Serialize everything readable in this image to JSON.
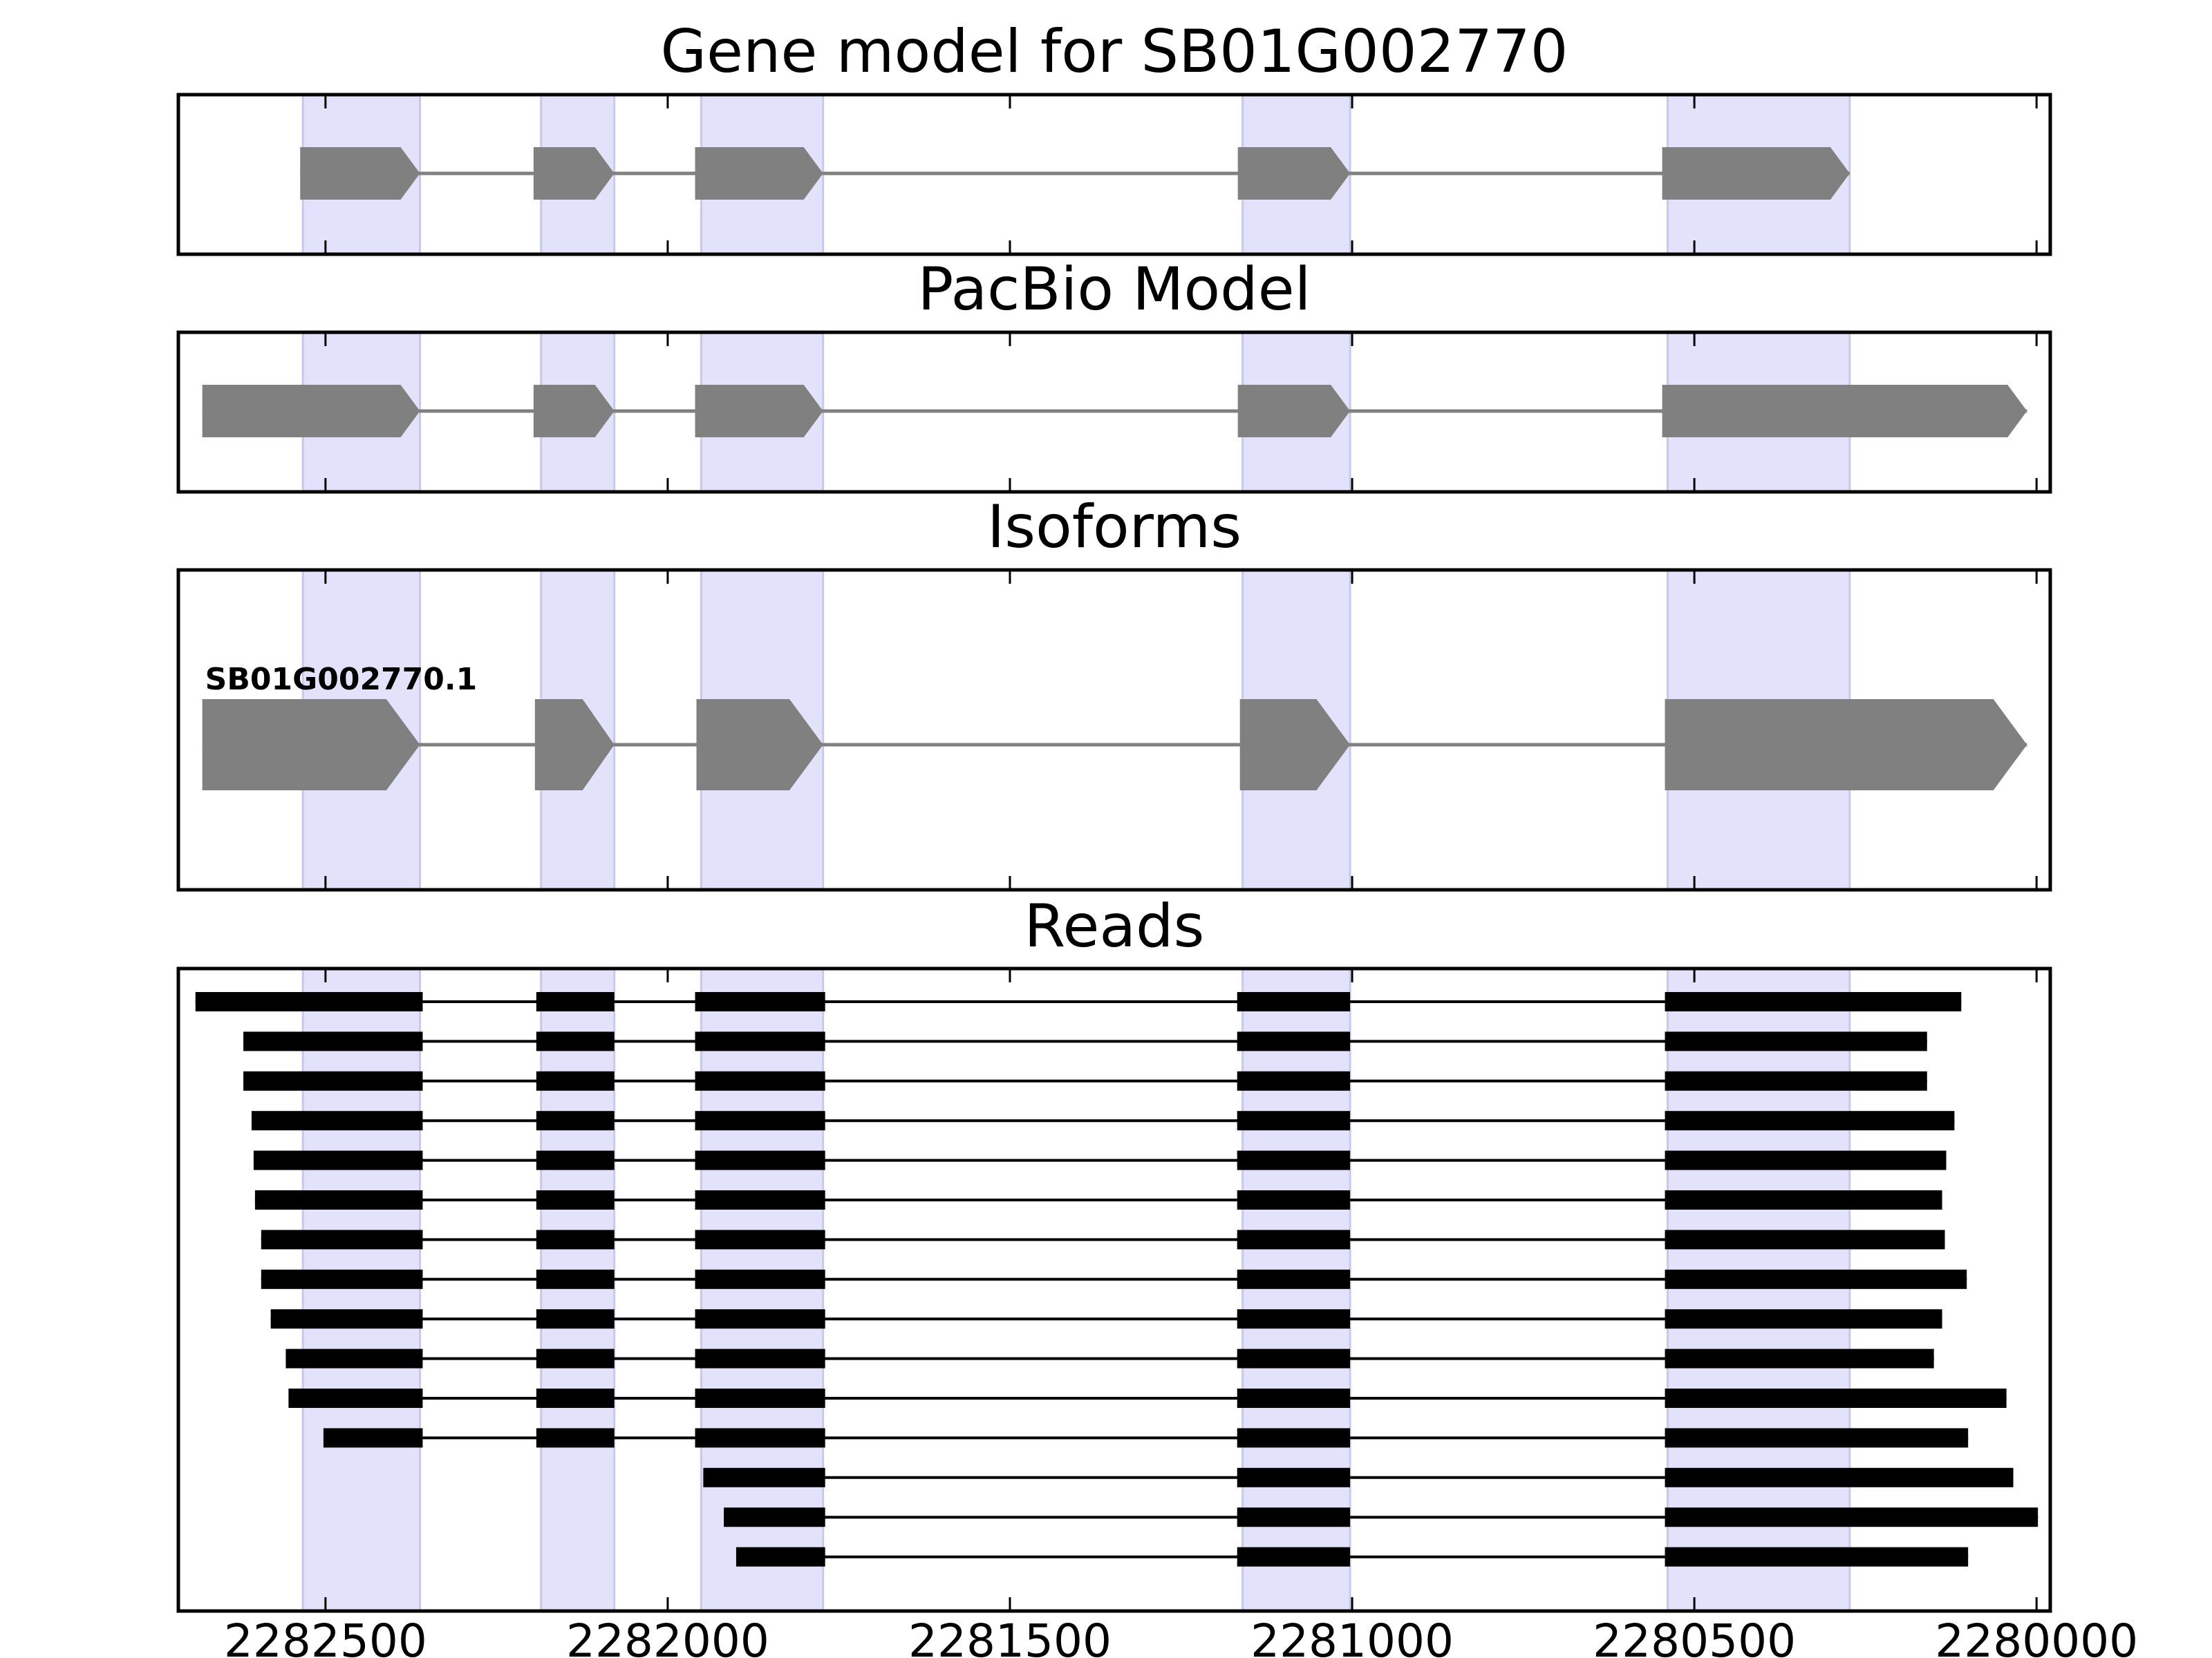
{
  "colors": {
    "exon_highlight": "#e2e2fb",
    "highlight_edge": "#c8c8ee",
    "model_fill": "#808080",
    "intron_line": "#808080",
    "read_fill": "#000000",
    "axes": "#000000"
  },
  "panels": [
    {
      "key": "gene",
      "title": "Gene model for SB01G002770"
    },
    {
      "key": "pacbio",
      "title": "PacBio Model"
    },
    {
      "key": "isoforms",
      "title": "Isoforms"
    },
    {
      "key": "reads",
      "title": "Reads"
    }
  ],
  "chart_data": {
    "type": "gene_track",
    "x_axis": {
      "reversed": true,
      "xlim": [
        2282715,
        2279980
      ],
      "ticks": [
        2282500,
        2282000,
        2281500,
        2281000,
        2280500,
        2280000
      ],
      "tick_labels": [
        "2282500",
        "2282000",
        "2281500",
        "2281000",
        "2280500",
        "2280000"
      ]
    },
    "highlight_regions": [
      [
        2282362,
        2282533
      ],
      [
        2282078,
        2282185
      ],
      [
        2281773,
        2281951
      ],
      [
        2281003,
        2281160
      ],
      [
        2280273,
        2280539
      ]
    ],
    "gene_model": {
      "exons": [
        [
          2282362,
          2282537
        ],
        [
          2282078,
          2282196
        ],
        [
          2281773,
          2281960
        ],
        [
          2281003,
          2281167
        ],
        [
          2280273,
          2280547
        ]
      ]
    },
    "pacbio_model": {
      "exons": [
        [
          2282362,
          2282680
        ],
        [
          2282078,
          2282196
        ],
        [
          2281773,
          2281960
        ],
        [
          2281003,
          2281167
        ],
        [
          2280014,
          2280547
        ]
      ]
    },
    "isoforms": [
      {
        "label": "SB01G002770.1",
        "exons": [
          [
            2282362,
            2282680
          ],
          [
            2282078,
            2282194
          ],
          [
            2281773,
            2281958
          ],
          [
            2281003,
            2281164
          ],
          [
            2280014,
            2280543
          ]
        ]
      }
    ],
    "reads": [
      {
        "exons": [
          [
            2282358,
            2282690
          ],
          [
            2282078,
            2282192
          ],
          [
            2281770,
            2281960
          ],
          [
            2281003,
            2281168
          ],
          [
            2280110,
            2280543
          ]
        ]
      },
      {
        "exons": [
          [
            2282358,
            2282620
          ],
          [
            2282078,
            2282192
          ],
          [
            2281770,
            2281960
          ],
          [
            2281003,
            2281168
          ],
          [
            2280160,
            2280543
          ]
        ]
      },
      {
        "exons": [
          [
            2282358,
            2282620
          ],
          [
            2282078,
            2282192
          ],
          [
            2281770,
            2281960
          ],
          [
            2281003,
            2281168
          ],
          [
            2280160,
            2280543
          ]
        ]
      },
      {
        "exons": [
          [
            2282358,
            2282608
          ],
          [
            2282078,
            2282192
          ],
          [
            2281770,
            2281960
          ],
          [
            2281003,
            2281168
          ],
          [
            2280120,
            2280543
          ]
        ]
      },
      {
        "exons": [
          [
            2282358,
            2282605
          ],
          [
            2282078,
            2282192
          ],
          [
            2281770,
            2281960
          ],
          [
            2281003,
            2281168
          ],
          [
            2280132,
            2280543
          ]
        ]
      },
      {
        "exons": [
          [
            2282358,
            2282603
          ],
          [
            2282078,
            2282192
          ],
          [
            2281770,
            2281960
          ],
          [
            2281003,
            2281168
          ],
          [
            2280138,
            2280543
          ]
        ]
      },
      {
        "exons": [
          [
            2282358,
            2282594
          ],
          [
            2282078,
            2282192
          ],
          [
            2281770,
            2281960
          ],
          [
            2281003,
            2281168
          ],
          [
            2280134,
            2280543
          ]
        ]
      },
      {
        "exons": [
          [
            2282358,
            2282594
          ],
          [
            2282078,
            2282192
          ],
          [
            2281770,
            2281960
          ],
          [
            2281003,
            2281168
          ],
          [
            2280102,
            2280543
          ]
        ]
      },
      {
        "exons": [
          [
            2282358,
            2282580
          ],
          [
            2282078,
            2282192
          ],
          [
            2281770,
            2281960
          ],
          [
            2281003,
            2281168
          ],
          [
            2280138,
            2280543
          ]
        ]
      },
      {
        "exons": [
          [
            2282358,
            2282558
          ],
          [
            2282078,
            2282192
          ],
          [
            2281770,
            2281960
          ],
          [
            2281003,
            2281168
          ],
          [
            2280150,
            2280543
          ]
        ]
      },
      {
        "exons": [
          [
            2282358,
            2282554
          ],
          [
            2282078,
            2282192
          ],
          [
            2281770,
            2281960
          ],
          [
            2281003,
            2281168
          ],
          [
            2280044,
            2280543
          ]
        ]
      },
      {
        "exons": [
          [
            2282358,
            2282503
          ],
          [
            2282078,
            2282192
          ],
          [
            2281770,
            2281960
          ],
          [
            2281003,
            2281168
          ],
          [
            2280100,
            2280543
          ]
        ]
      },
      {
        "exons": [
          [
            2281770,
            2281948
          ],
          [
            2281003,
            2281168
          ],
          [
            2280034,
            2280543
          ]
        ]
      },
      {
        "exons": [
          [
            2281770,
            2281918
          ],
          [
            2281003,
            2281168
          ],
          [
            2279998,
            2280543
          ]
        ]
      },
      {
        "exons": [
          [
            2281770,
            2281900
          ],
          [
            2281003,
            2281168
          ],
          [
            2280100,
            2280543
          ]
        ]
      }
    ]
  }
}
